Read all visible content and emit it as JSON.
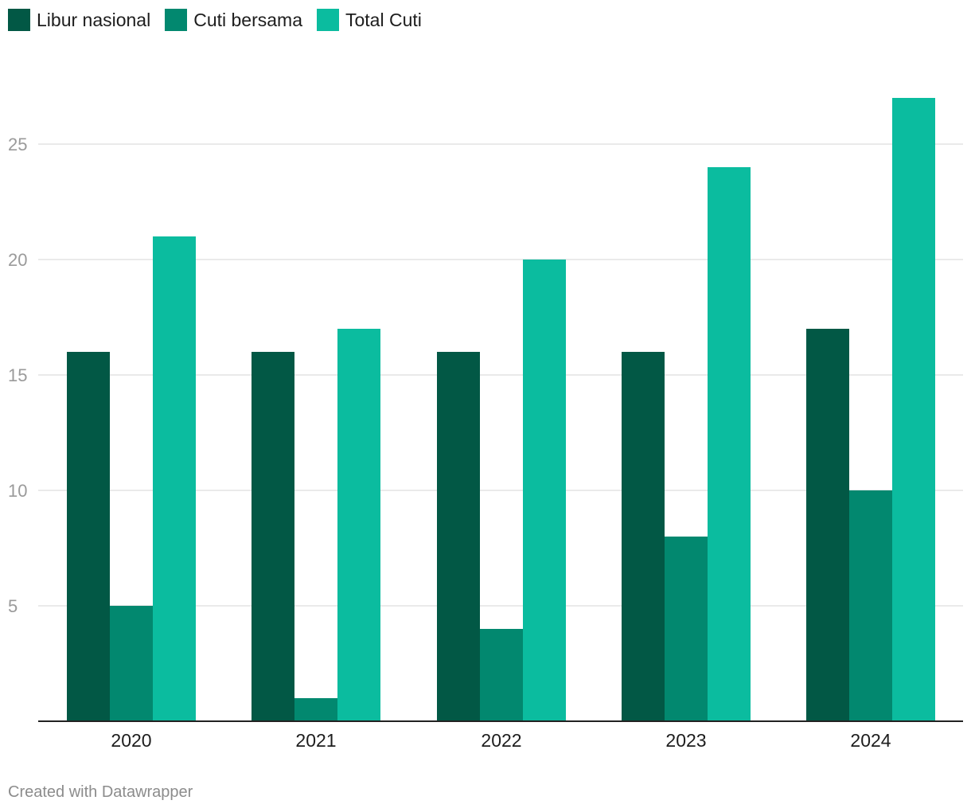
{
  "legend": [
    {
      "label": "Libur nasional",
      "color": "#025845"
    },
    {
      "label": "Cuti bersama",
      "color": "#02886f"
    },
    {
      "label": "Total Cuti",
      "color": "#0bbc9f"
    }
  ],
  "footer": "Created with Datawrapper",
  "chart_data": {
    "type": "bar",
    "categories": [
      "2020",
      "2021",
      "2022",
      "2023",
      "2024"
    ],
    "series": [
      {
        "name": "Libur nasional",
        "values": [
          16,
          16,
          16,
          16,
          17
        ],
        "color": "#025845"
      },
      {
        "name": "Cuti bersama",
        "values": [
          5,
          1,
          4,
          8,
          10
        ],
        "color": "#02886f"
      },
      {
        "name": "Total Cuti",
        "values": [
          21,
          17,
          20,
          24,
          27
        ],
        "color": "#0bbc9f"
      }
    ],
    "yticks": [
      5,
      10,
      15,
      20,
      25
    ],
    "ylim": [
      0,
      27
    ],
    "grid": true,
    "legend_position": "top-left"
  }
}
